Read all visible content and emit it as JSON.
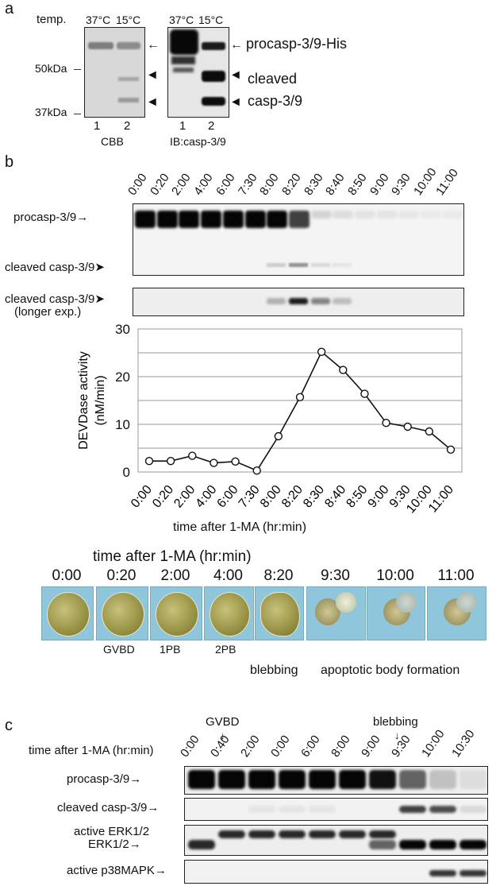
{
  "panel_a": {
    "letter": "a",
    "temp_label": "temp.",
    "temps_cbb": [
      "37°C",
      "15°C"
    ],
    "temps_ib": [
      "37°C",
      "15°C"
    ],
    "marker_50": "50kDa",
    "marker_37": "37kDa",
    "lanes_cbb": [
      "1",
      "2"
    ],
    "lanes_ib": [
      "1",
      "2"
    ],
    "cbb_label": "CBB",
    "ib_label": "IB:casp-3/9",
    "procasp_label": "procasp-3/9-His",
    "cleaved_label_1": "cleaved",
    "cleaved_label_2": "casp-3/9"
  },
  "panel_b": {
    "letter": "b",
    "time_points": [
      "0:00",
      "0:20",
      "2:00",
      "4:00",
      "6:00",
      "7:30",
      "8:00",
      "8:20",
      "8:30",
      "8:40",
      "8:50",
      "9:00",
      "9:30",
      "10:00",
      "11:00"
    ],
    "procasp_label": "procasp-3/9",
    "cleaved_label": "cleaved casp-3/9",
    "cleaved_longer_label_1": "cleaved casp-3/9",
    "cleaved_longer_label_2": "(longer exp.)",
    "oocyte_title": "time after 1-MA (hr:min)",
    "oocyte_times": [
      "0:00",
      "0:20",
      "2:00",
      "4:00",
      "8:20",
      "9:30",
      "10:00",
      "11:00"
    ],
    "stage_labels": {
      "gvbd": "GVBD",
      "pb1": "1PB",
      "pb2": "2PB",
      "blebbing": "blebbing",
      "apoptotic": "apoptotic body formation"
    }
  },
  "chart_data": {
    "type": "line",
    "title": "",
    "xlabel": "time after 1-MA (hr:min)",
    "ylabel_line1": "DEVDase activity",
    "ylabel_line2": "(nM/min)",
    "categories": [
      "0:00",
      "0:20",
      "2:00",
      "4:00",
      "6:00",
      "7:30",
      "8:00",
      "8:20",
      "8:30",
      "8:40",
      "8:50",
      "9:00",
      "9:30",
      "10:00",
      "11:00"
    ],
    "values": [
      2.3,
      2.3,
      3.4,
      1.9,
      2.2,
      0.3,
      7.5,
      15.7,
      25.2,
      21.4,
      16.4,
      10.3,
      9.5,
      8.5,
      4.7
    ],
    "ylim": [
      0,
      30
    ],
    "yticks": [
      0,
      10,
      20,
      30
    ],
    "gridlines": [
      5,
      10,
      15,
      20,
      25,
      30
    ],
    "grid": true,
    "marker": "open-circle"
  },
  "panel_c": {
    "letter": "c",
    "time_label": "time after 1-MA (hr:min)",
    "time_points": [
      "0:00",
      "0:40",
      "2:00",
      "0:00",
      "6:00",
      "8:00",
      "9:00",
      "9:30",
      "10:00",
      "10:30"
    ],
    "gvbd_label": "GVBD",
    "blebbing_label": "blebbing",
    "rows": {
      "procasp": "procasp-3/9",
      "cleaved": "cleaved casp-3/9",
      "active_erk": "active ERK1/2",
      "erk": "ERK1/2",
      "p38": "active p38MAPK"
    }
  }
}
